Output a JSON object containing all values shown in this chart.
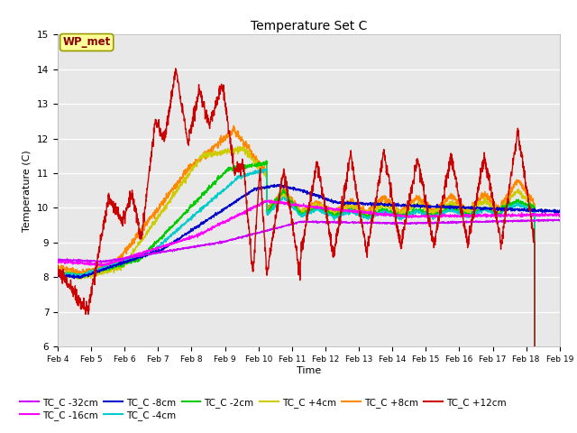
{
  "title": "Temperature Set C",
  "xlabel": "Time",
  "ylabel": "Temperature (C)",
  "ylim": [
    6.0,
    15.0
  ],
  "yticks": [
    6.0,
    7.0,
    8.0,
    9.0,
    10.0,
    11.0,
    12.0,
    13.0,
    14.0,
    15.0
  ],
  "bg_color": "#e8e8e8",
  "series_colors": {
    "TC_C -32cm": "#cc00ff",
    "TC_C -16cm": "#ff00ff",
    "TC_C -8cm": "#0000cc",
    "TC_C -4cm": "#00cccc",
    "TC_C -2cm": "#00cc00",
    "TC_C +4cm": "#cccc00",
    "TC_C +8cm": "#ff8800",
    "TC_C +12cm": "#cc0000"
  },
  "wp_met_box_color": "#ffff99",
  "wp_met_border_color": "#999900",
  "wp_met_text_color": "#880000",
  "xtick_labels": [
    "Feb 4",
    "Feb 5",
    "Feb 6",
    "Feb 7",
    "Feb 8",
    "Feb 9",
    "Feb 10",
    "Feb 11",
    "Feb 12",
    "Feb 13",
    "Feb 14",
    "Feb 15",
    "Feb 16",
    "Feb 17",
    "Feb 18",
    "Feb 19"
  ],
  "legend_order": [
    "TC_C -32cm",
    "TC_C -16cm",
    "TC_C -8cm",
    "TC_C -4cm",
    "TC_C -2cm",
    "TC_C +4cm",
    "TC_C +8cm",
    "TC_C +12cm"
  ]
}
